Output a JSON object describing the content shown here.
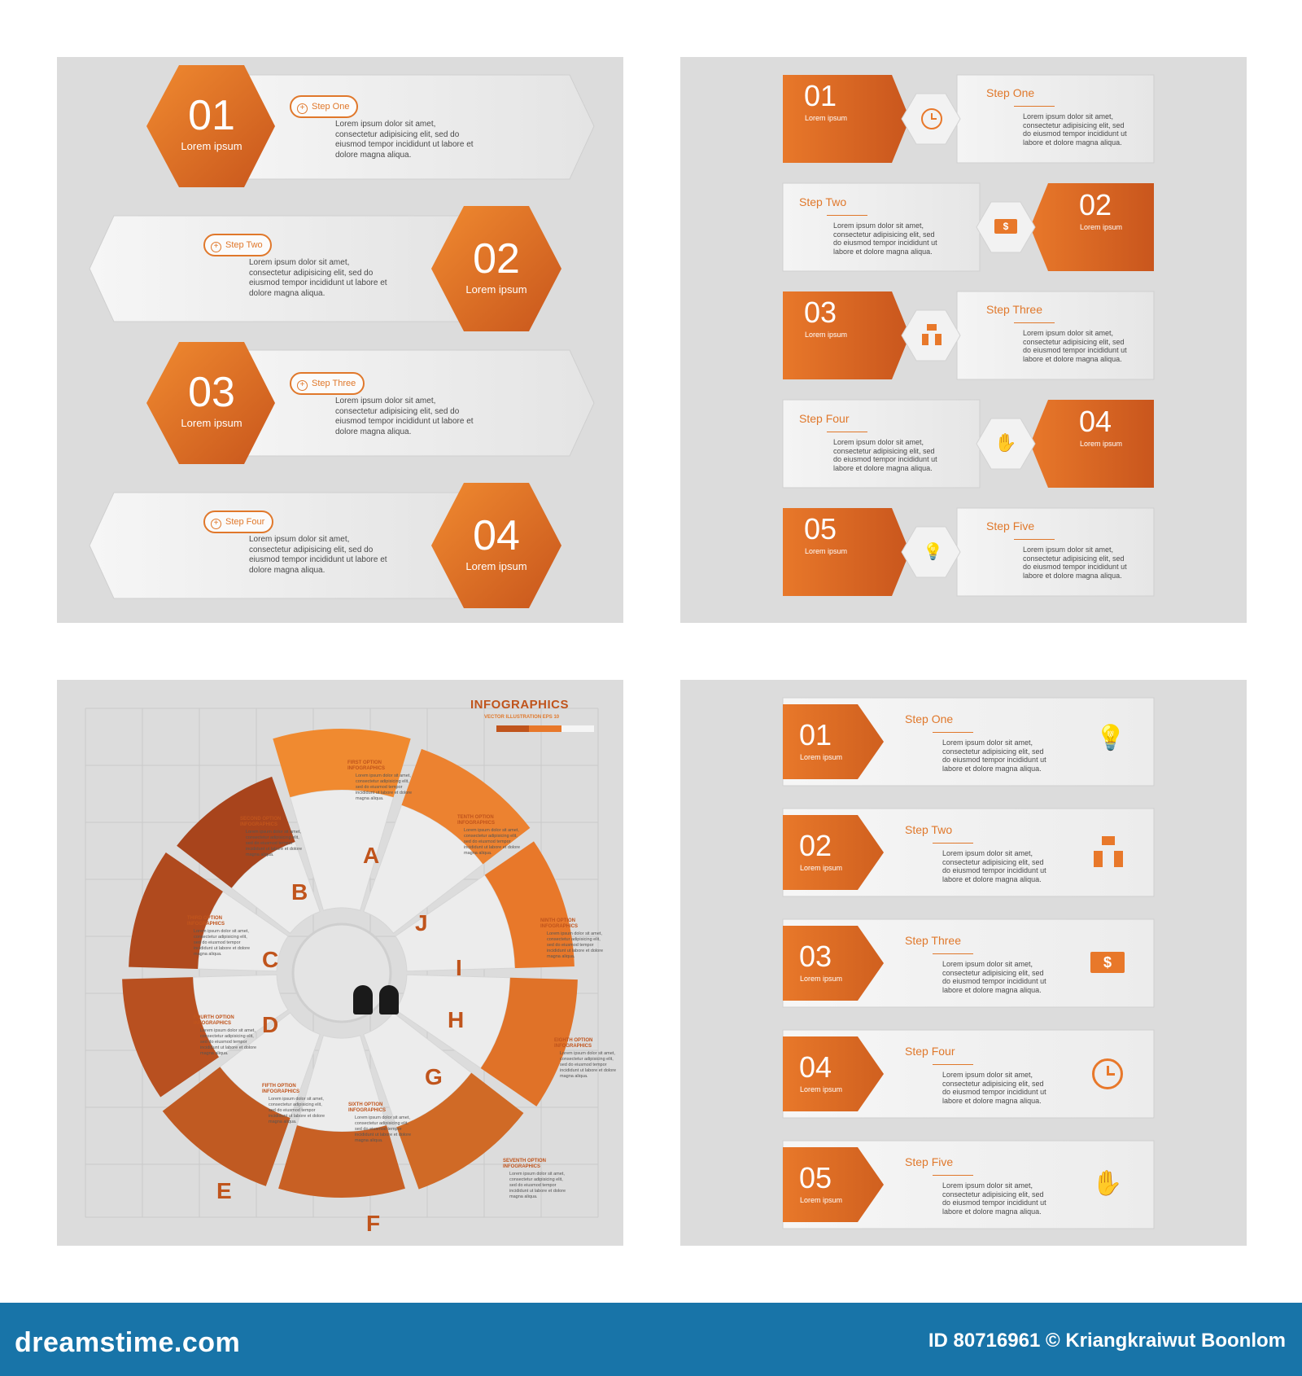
{
  "colors": {
    "accent": "#e8782a",
    "accent_dark": "#b84e1e",
    "panel": "#dcdcdc",
    "footer": "#1874a8"
  },
  "lorem": "Lorem ipsum dolor sit amet, consectetur adipisicing elit, sed do eiusmod tempor incididunt ut labore et dolore magna aliqua.",
  "lorem_short": "Lorem ipsum dolor sit amet, consectetur adipisicing elit, sed do eiusmod tempor incididunt ut labore et dolore magna aliqua.",
  "panel1": {
    "items": [
      {
        "num": "01",
        "sub": "Lorem ipsum",
        "step": "Step One"
      },
      {
        "num": "02",
        "sub": "Lorem ipsum",
        "step": "Step Two"
      },
      {
        "num": "03",
        "sub": "Lorem ipsum",
        "step": "Step Three"
      },
      {
        "num": "04",
        "sub": "Lorem ipsum",
        "step": "Step Four"
      }
    ]
  },
  "panel2": {
    "items": [
      {
        "num": "01",
        "sub": "Lorem ipsum",
        "step": "Step One",
        "icon": "clock-icon"
      },
      {
        "num": "02",
        "sub": "Lorem ipsum",
        "step": "Step Two",
        "icon": "money-icon"
      },
      {
        "num": "03",
        "sub": "Lorem ipsum",
        "step": "Step Three",
        "icon": "meeting-icon"
      },
      {
        "num": "04",
        "sub": "Lorem ipsum",
        "step": "Step Four",
        "icon": "hand-coin-icon"
      },
      {
        "num": "05",
        "sub": "Lorem ipsum",
        "step": "Step Five",
        "icon": "bulb-icon"
      }
    ]
  },
  "panel3": {
    "title": "INFOGRAPHICS",
    "subtitle": "VECTOR ILLUSTRATION EPS 10",
    "letters": [
      "A",
      "B",
      "C",
      "D",
      "E",
      "F",
      "G",
      "H",
      "I",
      "J"
    ],
    "options": [
      {
        "title": "FIRST OPTION",
        "sub": "INFOGRAPHICS"
      },
      {
        "title": "SECOND OPTION",
        "sub": "INFOGRAPHICS"
      },
      {
        "title": "THIRD OPTION",
        "sub": "INFOGRAPHICS"
      },
      {
        "title": "FOURTH OPTION",
        "sub": "INFOGRAPHICS"
      },
      {
        "title": "FIFTH OPTION",
        "sub": "INFOGRAPHICS"
      },
      {
        "title": "SIXTH OPTION",
        "sub": "INFOGRAPHICS"
      },
      {
        "title": "SEVENTH OPTION",
        "sub": "INFOGRAPHICS"
      },
      {
        "title": "EIGHTH OPTION",
        "sub": "INFOGRAPHICS"
      },
      {
        "title": "NINTH OPTION",
        "sub": "INFOGRAPHICS"
      },
      {
        "title": "TENTH OPTION",
        "sub": "INFOGRAPHICS"
      }
    ],
    "option_text": "Lorem ipsum dolor sit amet, consectetur adipisicing elit, sed do eiusmod tempor incididunt ut labore et dolore magna aliqua."
  },
  "panel4": {
    "items": [
      {
        "num": "01",
        "sub": "Lorem ipsum",
        "step": "Step One",
        "icon": "bulb-icon"
      },
      {
        "num": "02",
        "sub": "Lorem ipsum",
        "step": "Step Two",
        "icon": "meeting-icon"
      },
      {
        "num": "03",
        "sub": "Lorem ipsum",
        "step": "Step Three",
        "icon": "money-icon"
      },
      {
        "num": "04",
        "sub": "Lorem ipsum",
        "step": "Step Four",
        "icon": "clock-icon"
      },
      {
        "num": "05",
        "sub": "Lorem ipsum",
        "step": "Step Five",
        "icon": "hand-coin-icon"
      }
    ]
  },
  "footer": {
    "brand": "dreamstime.com",
    "credit": "ID 80716961 © Kriangkraiwut Boonlom"
  }
}
